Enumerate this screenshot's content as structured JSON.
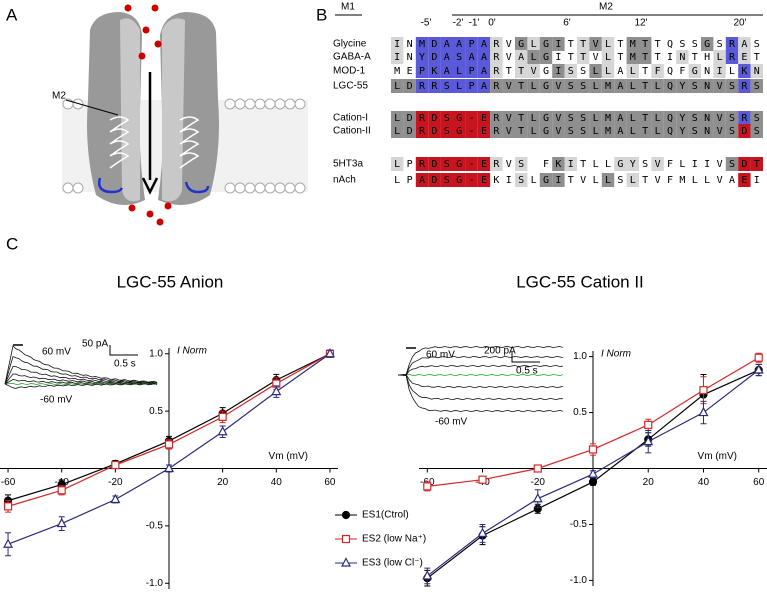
{
  "panel_labels": [
    "A",
    "B",
    "C"
  ],
  "panel_a": {
    "label": "M2"
  },
  "panel_b": {
    "regions": [
      "M1",
      "M2"
    ],
    "positions": [
      "-5'",
      "-2'",
      "-1'",
      "0'",
      "6'",
      "12'",
      "20'"
    ],
    "rows": [
      {
        "name": "Glycine",
        "sequence": "INMDAAPARVGLGITTVLTMTTQSSGSRAS",
        "shading": "l.bbbbbbl.dldd.ldl.dd....d.bl."
      },
      {
        "name": "GABA-A",
        "sequence": "INYDASAARVALGITTVLTMTTINTHLRET",
        "shading": "l.bbbbbbl.ldd..l.l.dd..l..lbl."
      },
      {
        "name": "MOD-1",
        "sequence": "MEPKALPARTTVGISSLLALTFQFGNILKN",
        "shading": "..bbbbbbl.ll.dl.dl.l.l..l.l.bl"
      },
      {
        "name": "LGC-55",
        "sequence": "LDRRSLPARVTLGVSSLMALTLQYSNVSRS",
        "shading": "ddbbbbbbddddddddddddddddddddbd"
      },
      {
        "name": "Cation-I",
        "sequence": "LDRDSG-ERVTLGVSSLMALTLQYSNVSRS",
        "shading": "ddrrrrrrddddddddddddddddddddbd"
      },
      {
        "name": "Cation-II",
        "sequence": "LDRDSG-ERVTLGVSSLMALTLQYSNVSDS",
        "shading": "ddrrrrrrddddddddddddddddddddrd"
      },
      {
        "name": "5HT3a",
        "sequence": "LPRDSG-ERVS FKITLLGYSVFLIIVSDT",
        "shading": "l.rrrrrrl.l..dl...ll.l.....drr"
      },
      {
        "name": "nAch",
        "sequence": "LPADSG-EKISLGITVLLSLTVFMLLVAEI",
        "shading": "..rrrrrr..l.dd...d.l........r."
      }
    ]
  },
  "chart_data": [
    {
      "type": "line",
      "title": "LGC-55 Anion",
      "xlabel": "Vm (mV)",
      "ylabel": "I Norm",
      "x": [
        -60,
        -40,
        -20,
        0,
        20,
        40,
        60
      ],
      "series": [
        {
          "color": "#000000",
          "marker": "circle",
          "values": [
            -0.28,
            -0.14,
            0.04,
            0.24,
            0.48,
            0.77,
            1.0
          ],
          "errors": [
            0.05,
            0.04,
            0.03,
            0.04,
            0.05,
            0.05,
            0.03
          ]
        },
        {
          "color": "#d62728",
          "marker": "square",
          "values": [
            -0.33,
            -0.19,
            0.03,
            0.21,
            0.45,
            0.74,
            1.0
          ],
          "errors": [
            0.05,
            0.04,
            0.03,
            0.04,
            0.05,
            0.05,
            0.03
          ]
        },
        {
          "color": "#2b2b7a",
          "marker": "triangle",
          "values": [
            -0.66,
            -0.48,
            -0.27,
            0.0,
            0.32,
            0.67,
            1.0
          ],
          "errors": [
            0.1,
            0.06,
            0.03,
            0.03,
            0.05,
            0.05,
            0.03
          ]
        }
      ],
      "xlim": [
        -63,
        63
      ],
      "ylim": [
        -1.05,
        1.05
      ],
      "xticks": [
        -60,
        -40,
        -20,
        20,
        40,
        60
      ],
      "yticks": [
        {
          "value": -1,
          "label": "-1.0"
        },
        {
          "value": -0.5,
          "label": "-0.5"
        },
        {
          "value": 0.5,
          "label": "0.5"
        },
        {
          "value": 1,
          "label": "1.0"
        }
      ],
      "inset": {
        "top_trace": "60 mV",
        "bottom_trace": "-60 mV",
        "current_scale": "50 pA",
        "time_scale": "0.5 s"
      }
    },
    {
      "type": "line",
      "title": "LGC-55 Cation II",
      "xlabel": "Vm (mV)",
      "ylabel": "I Norm",
      "x": [
        -60,
        -40,
        -20,
        0,
        20,
        40,
        60
      ],
      "series": [
        {
          "name": "ES1(Ctrol)",
          "color": "#000000",
          "marker": "circle",
          "values": [
            -0.98,
            -0.6,
            -0.36,
            -0.12,
            0.26,
            0.66,
            0.88
          ],
          "errors": [
            0.07,
            0.08,
            0.04,
            0.03,
            0.06,
            0.18,
            0.05
          ]
        },
        {
          "name": "ES2 (low Na⁺)",
          "color": "#d62728",
          "marker": "square",
          "values": [
            -0.16,
            -0.1,
            0.0,
            0.17,
            0.39,
            0.7,
            0.99
          ],
          "errors": [
            0.04,
            0.03,
            0.02,
            0.05,
            0.05,
            0.12,
            0.04
          ]
        },
        {
          "name": "ES3 (low Cl⁻)",
          "color": "#2b2b7a",
          "marker": "triangle",
          "values": [
            -0.96,
            -0.58,
            -0.27,
            -0.05,
            0.24,
            0.5,
            0.88
          ],
          "errors": [
            0.07,
            0.08,
            0.08,
            0.03,
            0.1,
            0.1,
            0.05
          ]
        }
      ],
      "xlim": [
        -63,
        63
      ],
      "ylim": [
        -1.05,
        1.05
      ],
      "xticks": [
        -60,
        -40,
        -20,
        20,
        40,
        60
      ],
      "yticks": [
        {
          "value": -1,
          "label": "-1.0"
        },
        {
          "value": -0.5,
          "label": "-0.5"
        },
        {
          "value": 0.5,
          "label": "0.5"
        },
        {
          "value": 1,
          "label": "1.0"
        }
      ],
      "inset": {
        "top_trace": "60 mV",
        "bottom_trace": "-60 mV",
        "current_scale": "200 pA",
        "time_scale": "0.5 s"
      }
    }
  ]
}
